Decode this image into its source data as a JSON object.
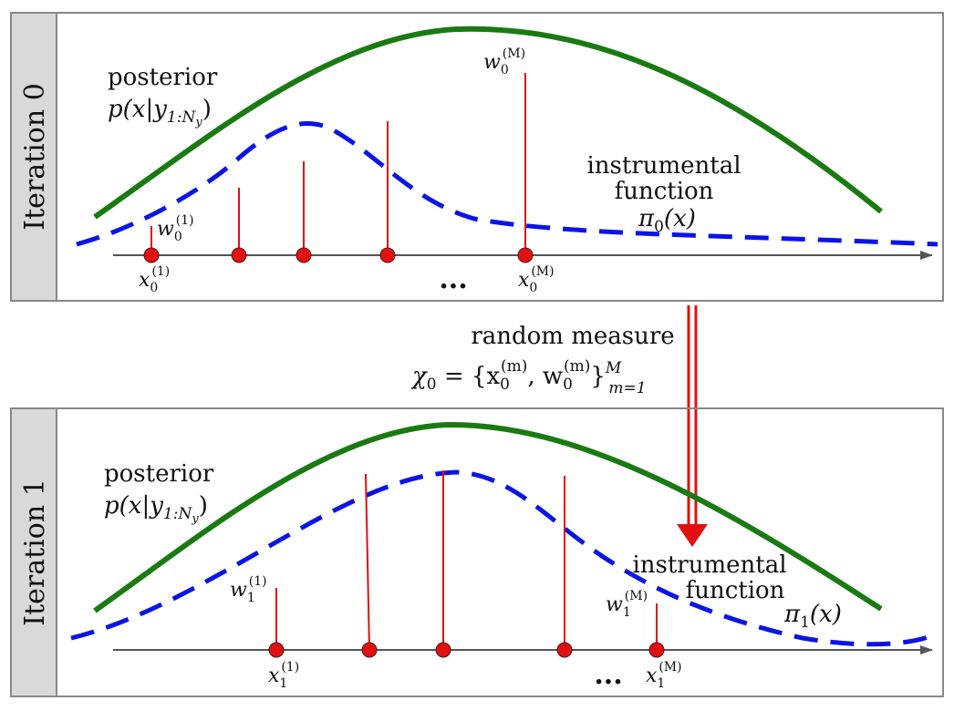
{
  "colors": {
    "posterior": "#1a7a12",
    "instrumental": "#0a14e6",
    "samples": "#e01010",
    "axis": "#555555",
    "side_panel": "#d9d9d9",
    "panel_border": "#888888"
  },
  "panel0": {
    "side_label": "Iteration 0",
    "posterior_label": "posterior",
    "posterior_expr": "p(x|y",
    "posterior_sub": "1:N",
    "posterior_subsub": "y",
    "instrumental_label_1": "instrumental",
    "instrumental_label_2": "function",
    "instrumental_expr": "π",
    "instrumental_sub": "0",
    "instrumental_arg": "(x)",
    "w_first": "w",
    "w_first_sub": "0",
    "w_first_sup": "(1)",
    "w_last": "w",
    "w_last_sub": "0",
    "w_last_sup": "(M)",
    "x_first": "x",
    "x_first_sub": "0",
    "x_first_sup": "(1)",
    "x_last": "x",
    "x_last_sub": "0",
    "x_last_sup": "(M)",
    "ellipsis": "..."
  },
  "between": {
    "title": "random measure",
    "expr": "χ",
    "expr_sub": "0",
    "expr_body": " = {x",
    "expr_x_sub": "0",
    "expr_x_sup": "(m)",
    "expr_comma": ", w",
    "expr_w_sub": "0",
    "expr_w_sup": "(m)",
    "expr_close": "}",
    "expr_close_sup": "M",
    "expr_close_sub": "m=1"
  },
  "panel1": {
    "side_label": "Iteration 1",
    "posterior_label": "posterior",
    "posterior_expr": "p(x|y",
    "posterior_sub": "1:N",
    "posterior_subsub": "y",
    "instrumental_label_1": "instrumental",
    "instrumental_label_2": "function",
    "instrumental_expr": "π",
    "instrumental_sub": "1",
    "instrumental_arg": "(x)",
    "w_first": "w",
    "w_first_sub": "1",
    "w_first_sup": "(1)",
    "w_last": "w",
    "w_last_sub": "1",
    "w_last_sup": "(M)",
    "x_first": "x",
    "x_first_sub": "1",
    "x_first_sup": "(1)",
    "x_last": "x",
    "x_last_sub": "1",
    "x_last_sup": "(M)",
    "ellipsis": "..."
  }
}
